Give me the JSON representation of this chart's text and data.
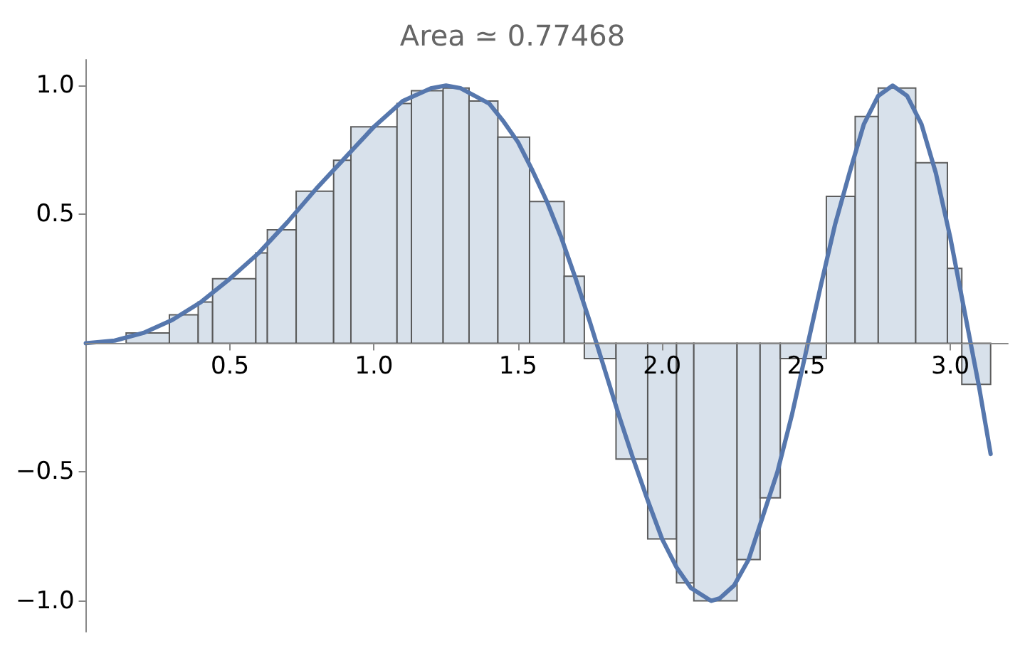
{
  "chart_data": {
    "type": "histogram",
    "title": "Area ≃ 0.77468",
    "bins": [
      0.14,
      0.29,
      0.39,
      0.44,
      0.59,
      0.63,
      0.73,
      0.86,
      0.92,
      1.08,
      1.13,
      1.24,
      1.33,
      1.43,
      1.54,
      1.66,
      1.73,
      1.84,
      1.95,
      2.05,
      2.11,
      2.26,
      2.34,
      2.41,
      2.57,
      2.67,
      2.75,
      2.88,
      2.99,
      3.04,
      3.14
    ],
    "values": [
      0.04,
      0.11,
      0.16,
      0.25,
      0.35,
      0.44,
      0.59,
      0.71,
      0.84,
      0.93,
      0.98,
      0.99,
      0.94,
      0.8,
      0.55,
      0.26,
      -0.06,
      -0.45,
      -0.76,
      -0.93,
      -1.0,
      -0.84,
      -0.6,
      -0.06,
      0.57,
      0.88,
      0.99,
      0.7,
      0.29,
      -0.16
    ],
    "color": "#d6dfea",
    "series": [
      {
        "type": "line",
        "color": "#5677ad",
        "x": [
          0,
          0.1,
          0.2,
          0.3,
          0.4,
          0.5,
          0.6,
          0.7,
          0.8,
          0.9,
          1.0,
          1.1,
          1.2,
          1.25,
          1.3,
          1.4,
          1.45,
          1.5,
          1.55,
          1.6,
          1.65,
          1.7,
          1.75,
          1.8,
          1.85,
          1.9,
          1.95,
          2.0,
          2.05,
          2.1,
          2.17,
          2.2,
          2.25,
          2.3,
          2.4,
          2.45,
          2.5,
          2.55,
          2.6,
          2.65,
          2.7,
          2.75,
          2.8,
          2.85,
          2.9,
          2.95,
          3.0,
          3.05,
          3.1,
          3.14
        ],
        "values": [
          0,
          0.01,
          0.04,
          0.09,
          0.16,
          0.25,
          0.35,
          0.47,
          0.6,
          0.72,
          0.84,
          0.94,
          0.99,
          1.0,
          0.99,
          0.93,
          0.86,
          0.78,
          0.67,
          0.55,
          0.41,
          0.25,
          0.08,
          -0.1,
          -0.28,
          -0.45,
          -0.61,
          -0.76,
          -0.87,
          -0.95,
          -1.0,
          -0.99,
          -0.94,
          -0.84,
          -0.5,
          -0.28,
          -0.03,
          0.22,
          0.46,
          0.66,
          0.85,
          0.96,
          1.0,
          0.96,
          0.85,
          0.66,
          0.41,
          0.12,
          -0.17,
          -0.43
        ]
      }
    ],
    "xlim": [
      0,
      3.2
    ],
    "xticks": [
      0.5,
      {
        "value": 1,
        "label": "1.0"
      },
      1.5,
      {
        "value": 2,
        "label": "2.0"
      },
      2.5,
      {
        "value": 3,
        "label": "3.0"
      }
    ],
    "ylim": [
      -1.12,
      1.1
    ],
    "yticks": [
      {
        "value": -1,
        "label": "−1.0"
      },
      {
        "value": -0.5,
        "label": "−0.5"
      },
      0.5,
      {
        "value": 1,
        "label": "1.0"
      }
    ],
    "grid": false,
    "marker": "none",
    "line_style": "solid"
  }
}
